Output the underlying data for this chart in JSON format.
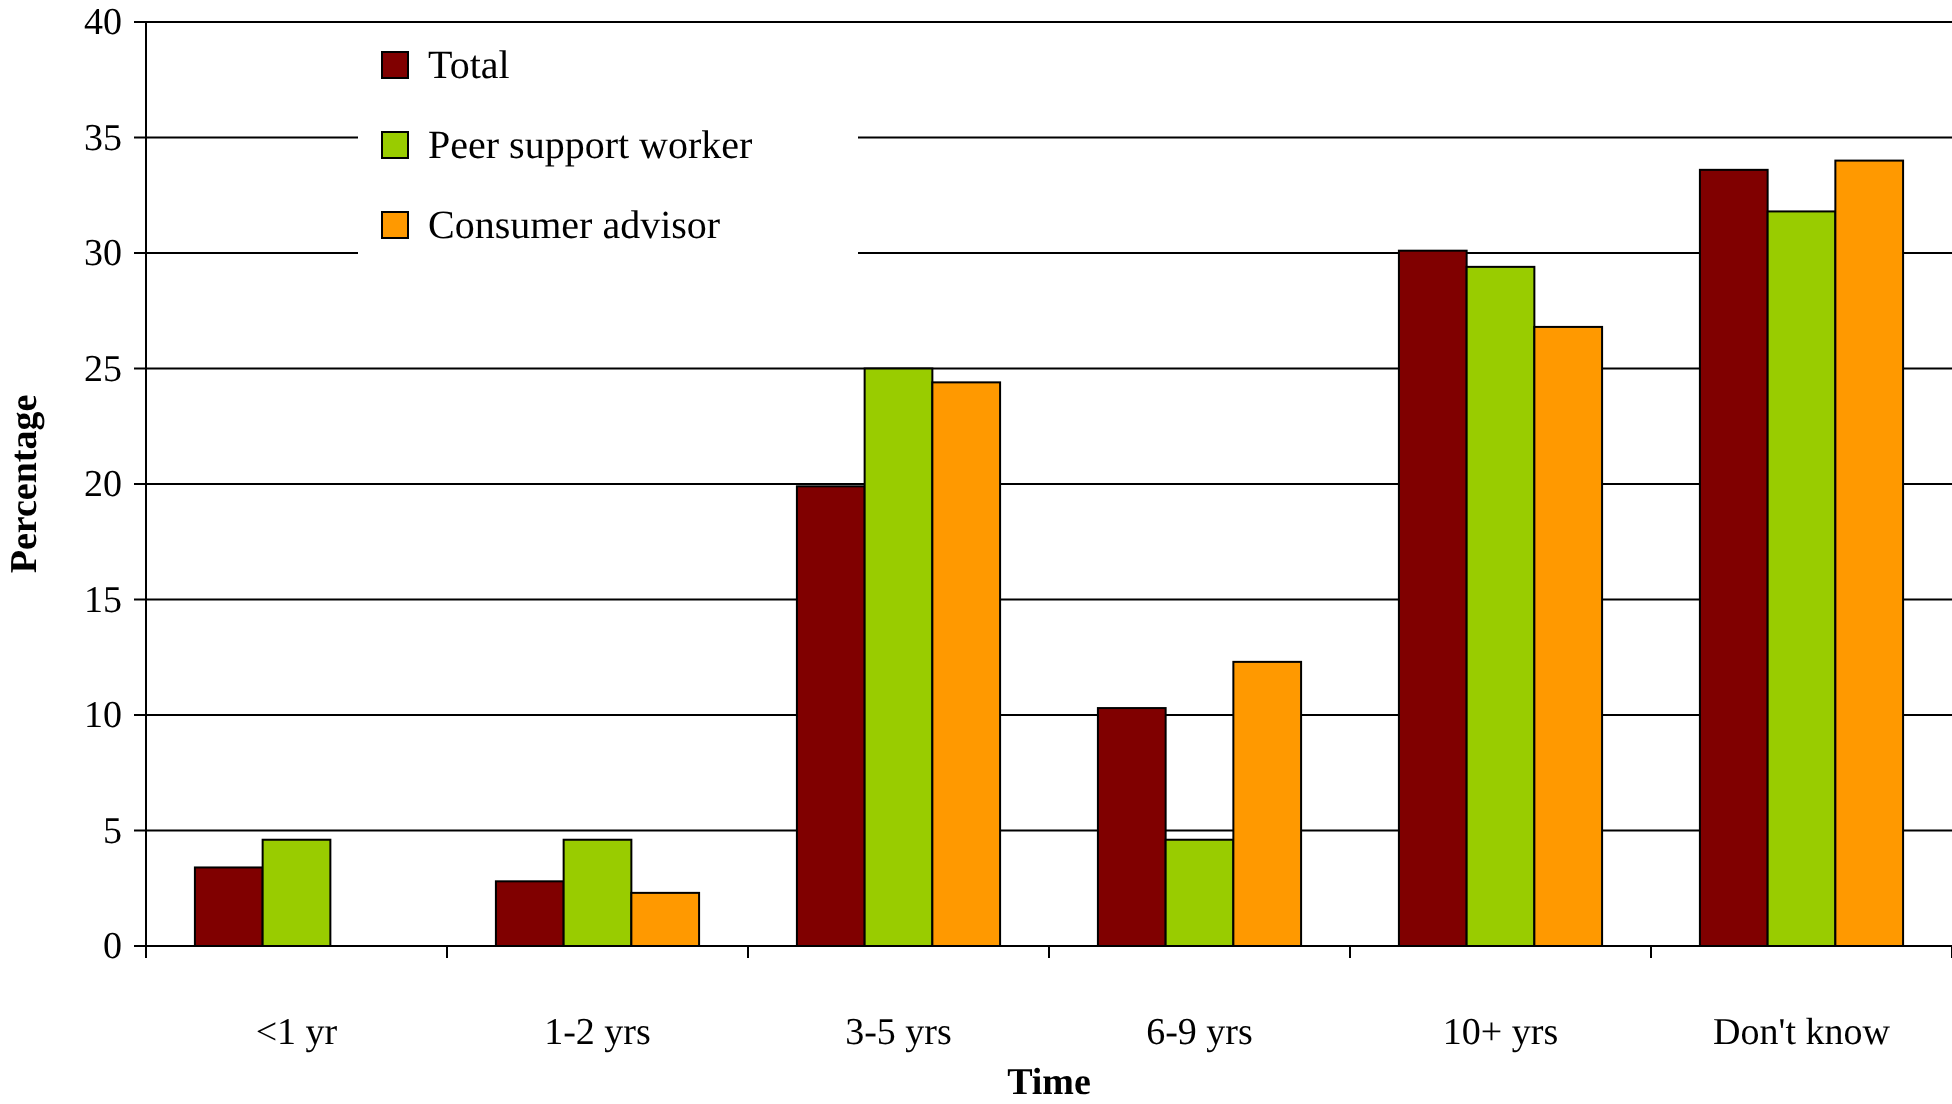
{
  "chart_data": {
    "type": "bar",
    "xlabel": "Time",
    "ylabel": "Percentage",
    "categories": [
      "<1 yr",
      "1-2 yrs",
      "3-5 yrs",
      "6-9 yrs",
      "10+ yrs",
      "Don't know"
    ],
    "series": [
      {
        "name": "Total",
        "color": "#800000",
        "values": [
          3.4,
          2.8,
          19.9,
          10.3,
          30.1,
          33.6
        ]
      },
      {
        "name": "Peer support worker",
        "color": "#99cc00",
        "values": [
          4.6,
          4.6,
          25.0,
          4.6,
          29.4,
          31.8
        ]
      },
      {
        "name": "Consumer advisor",
        "color": "#ff9900",
        "values": [
          0,
          2.3,
          24.4,
          12.3,
          26.8,
          34.0
        ]
      }
    ],
    "ylim": [
      0,
      40
    ],
    "yticks": [
      0,
      5,
      10,
      15,
      20,
      25,
      30,
      35,
      40
    ],
    "grid": "y",
    "legend": "top left"
  }
}
